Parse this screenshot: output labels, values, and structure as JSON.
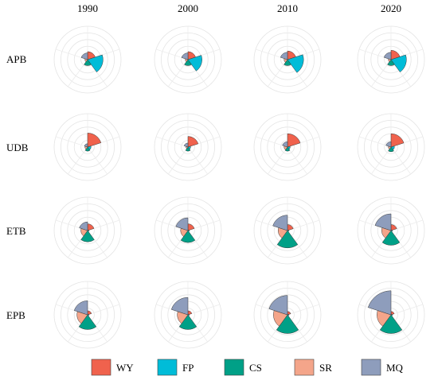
{
  "chart_data": {
    "type": "polar-area-grid",
    "columns": [
      "1990",
      "2000",
      "2010",
      "2020"
    ],
    "rows": [
      "APB",
      "UDB",
      "ETB",
      "EPB"
    ],
    "indicators": [
      "WY",
      "FP",
      "CS",
      "SR",
      "MQ"
    ],
    "colors": {
      "WY": "#F0624D",
      "FP": "#00BCD8",
      "CS": "#00A087",
      "SR": "#F4A58A",
      "MQ": "#8E9DBC"
    },
    "grid_rings": 5,
    "max_value": 5,
    "values": {
      "APB": [
        [
          1.2,
          2.3,
          0.9,
          0.4,
          1.0
        ],
        [
          1.2,
          2.1,
          0.9,
          0.4,
          1.0
        ],
        [
          1.3,
          2.4,
          0.9,
          0.5,
          1.1
        ],
        [
          1.4,
          2.3,
          0.9,
          0.4,
          1.1
        ]
      ],
      "UDB": [
        [
          2.1,
          0.5,
          0.6,
          0.4,
          0.5
        ],
        [
          1.6,
          0.4,
          0.6,
          0.3,
          0.6
        ],
        [
          2.0,
          0.4,
          0.6,
          0.5,
          0.8
        ],
        [
          2.0,
          0.5,
          0.7,
          0.4,
          0.8
        ]
      ],
      "ETB": [
        [
          1.0,
          0.2,
          1.7,
          1.0,
          1.3
        ],
        [
          1.0,
          0.2,
          1.8,
          1.1,
          1.9
        ],
        [
          0.9,
          0.2,
          2.6,
          1.4,
          2.3
        ],
        [
          0.9,
          0.2,
          2.2,
          1.4,
          2.5
        ]
      ],
      "EPB": [
        [
          0.6,
          0.2,
          2.2,
          1.6,
          2.1
        ],
        [
          0.6,
          0.2,
          2.2,
          1.6,
          2.6
        ],
        [
          0.5,
          0.2,
          2.8,
          2.1,
          2.9
        ],
        [
          0.5,
          0.2,
          2.8,
          2.1,
          3.6
        ]
      ]
    }
  }
}
